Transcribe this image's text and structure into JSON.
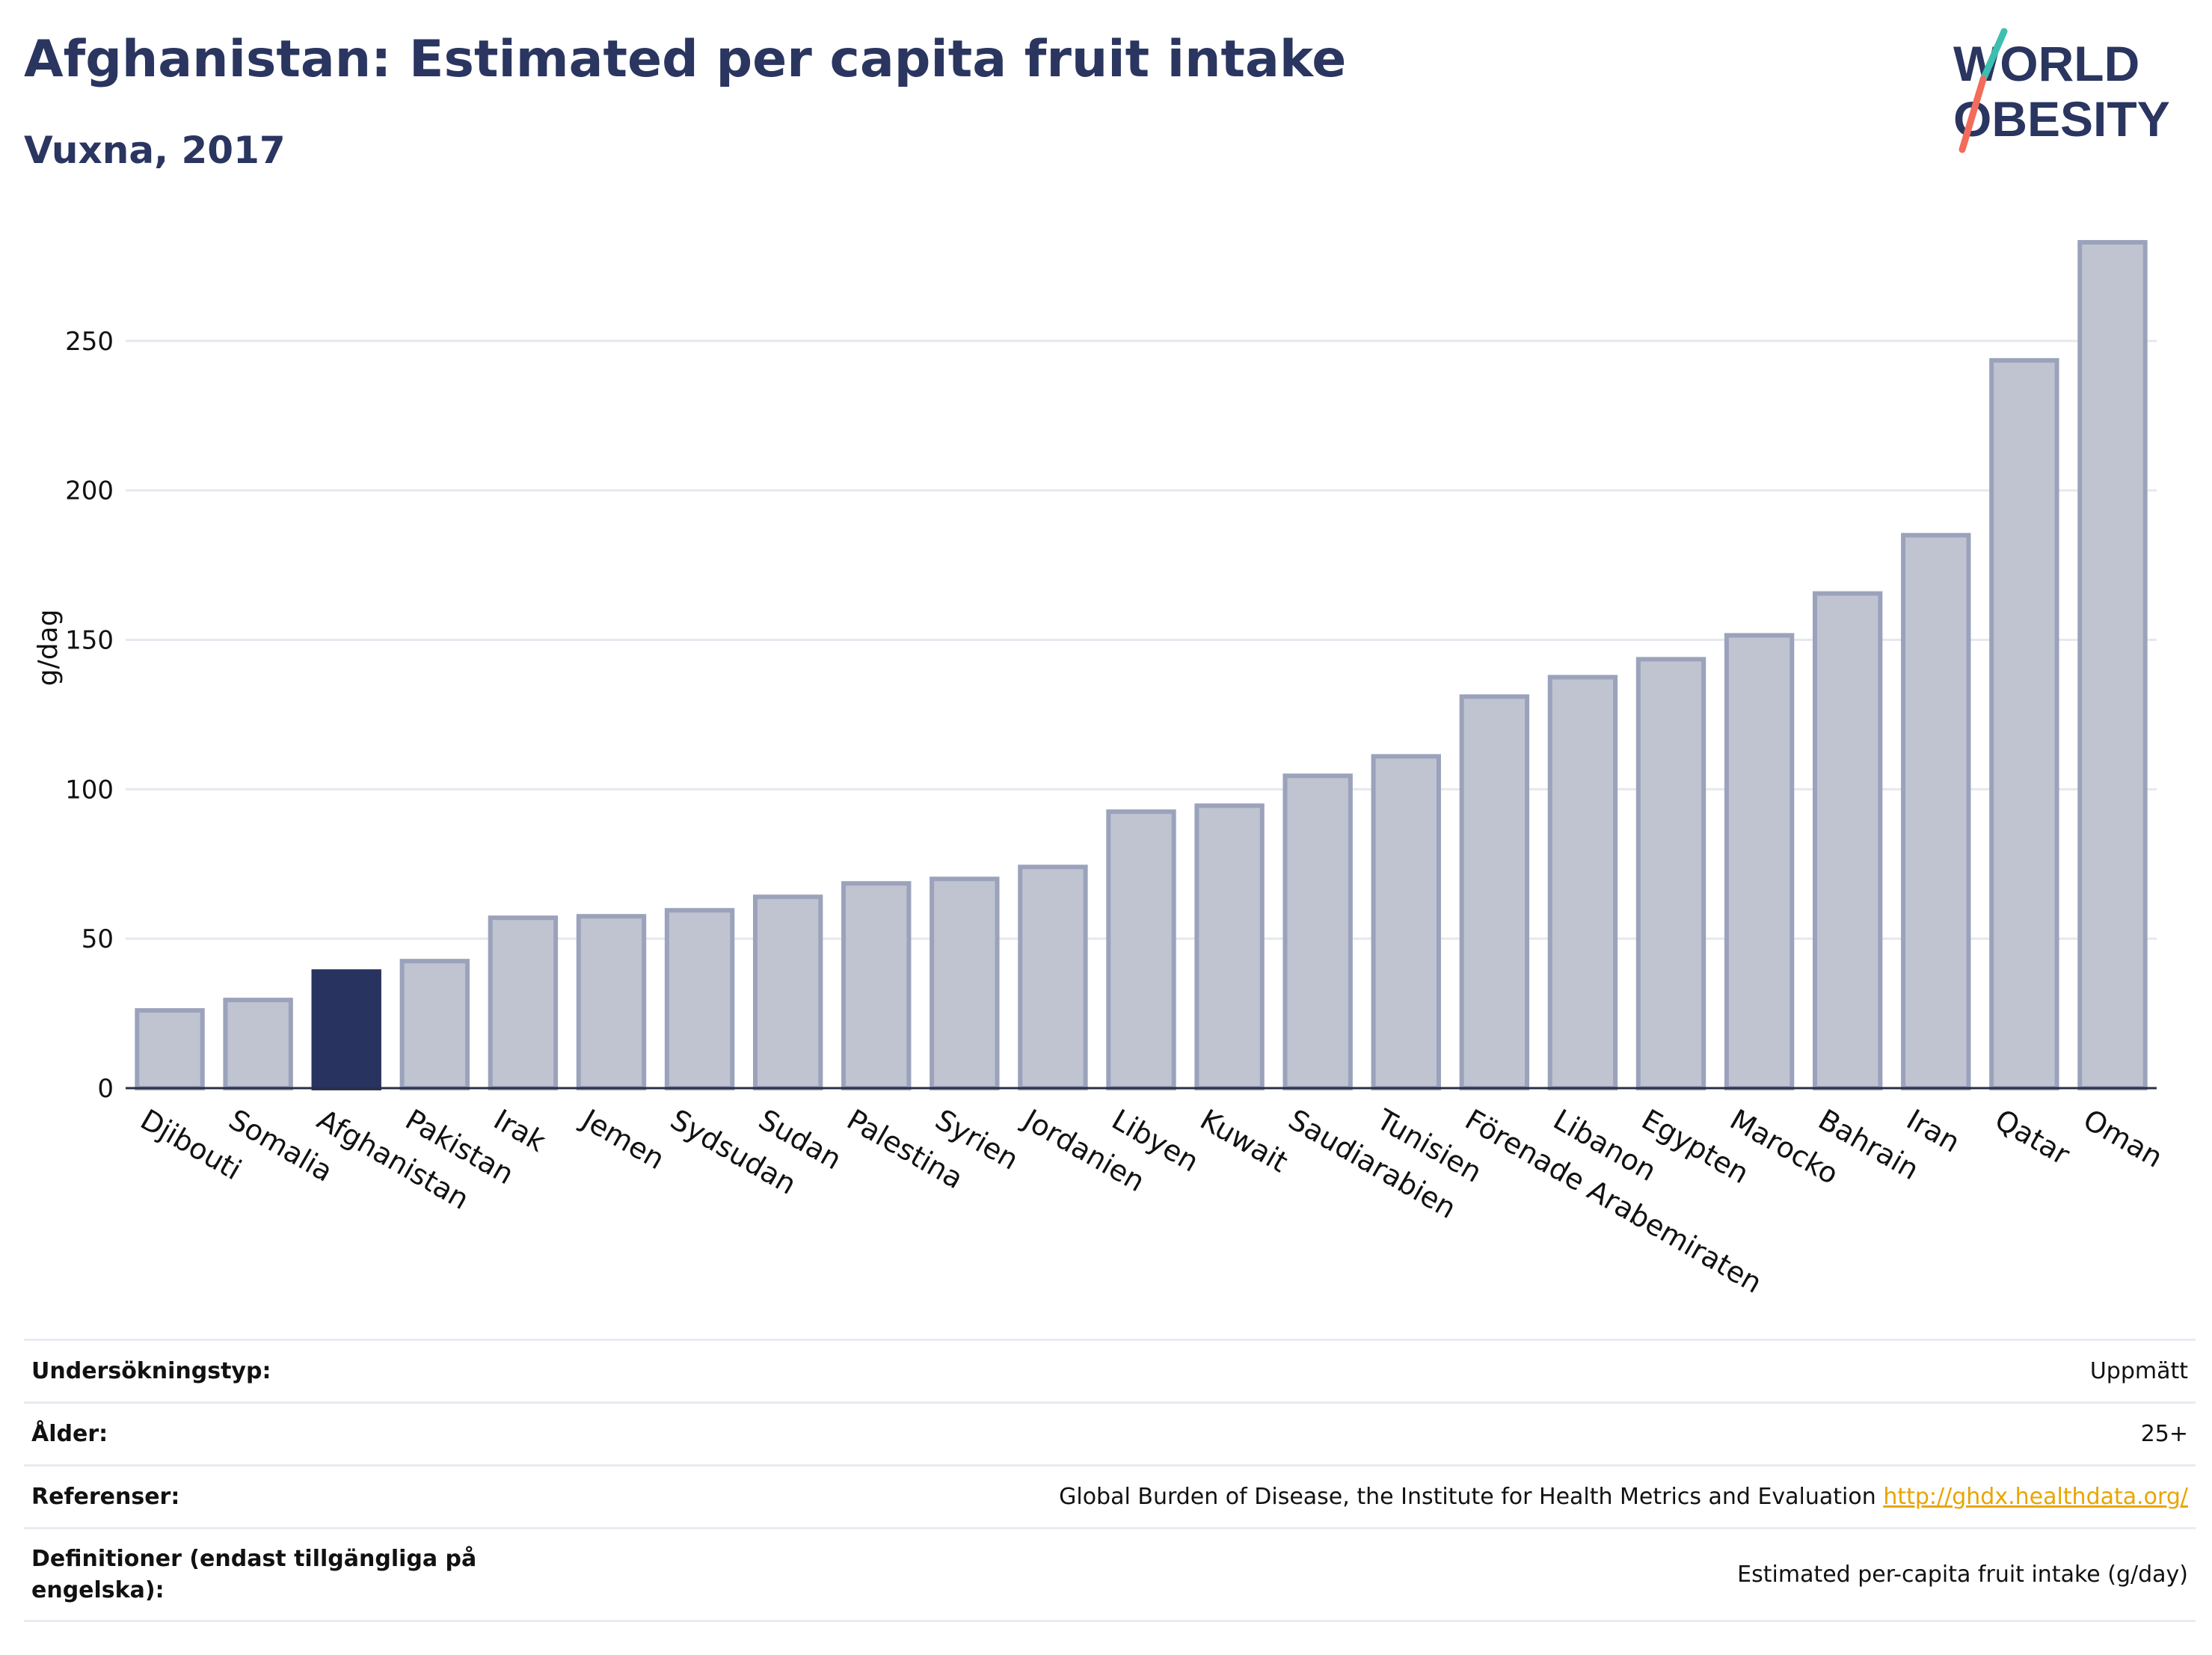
{
  "header": {
    "title": "Afghanistan: Estimated per capita fruit intake",
    "subtitle": "Vuxna, 2017"
  },
  "logo": {
    "line1": "WORLD",
    "line2": "OBESITY"
  },
  "colors": {
    "title": "#2a3560",
    "bar_fill": "#c0c4d1",
    "bar_stroke": "#9ba2bb",
    "highlight": "#28335f",
    "link": "#e8a500",
    "logo_teal": "#3cbfb0",
    "logo_red": "#f26b5b"
  },
  "chart_data": {
    "type": "bar",
    "ylabel": "g/dag",
    "ylim": [
      0,
      290
    ],
    "yticks": [
      0,
      50,
      100,
      150,
      200,
      250
    ],
    "grid": true,
    "highlight": "Afghanistan",
    "categories": [
      "Djibouti",
      "Somalia",
      "Afghanistan",
      "Pakistan",
      "Irak",
      "Jemen",
      "Sydsudan",
      "Sudan",
      "Palestina",
      "Syrien",
      "Jordanien",
      "Libyen",
      "Kuwait",
      "Saudiarabien",
      "Tunisien",
      "Förenade Arabemiraten",
      "Libanon",
      "Egypten",
      "Marocko",
      "Bahrain",
      "Iran",
      "Qatar",
      "Oman"
    ],
    "values": [
      26,
      29.5,
      39,
      42.5,
      57,
      57.5,
      59.5,
      64,
      68.5,
      70,
      74,
      92.5,
      94.5,
      104.5,
      111,
      131,
      137.5,
      143.5,
      151.5,
      165.5,
      185,
      243.5,
      283
    ]
  },
  "meta": [
    {
      "key": "Undersökningstyp:",
      "value": "Uppmätt"
    },
    {
      "key": "Ålder:",
      "value": "25+"
    },
    {
      "key": "Referenser:",
      "value": "Global Burden of Disease, the Institute for Health Metrics and Evaluation",
      "link": "http://ghdx.healthdata.org/"
    },
    {
      "key": "Definitioner (endast tillgängliga på engelska):",
      "value": "Estimated per-capita fruit intake (g/day)"
    }
  ]
}
